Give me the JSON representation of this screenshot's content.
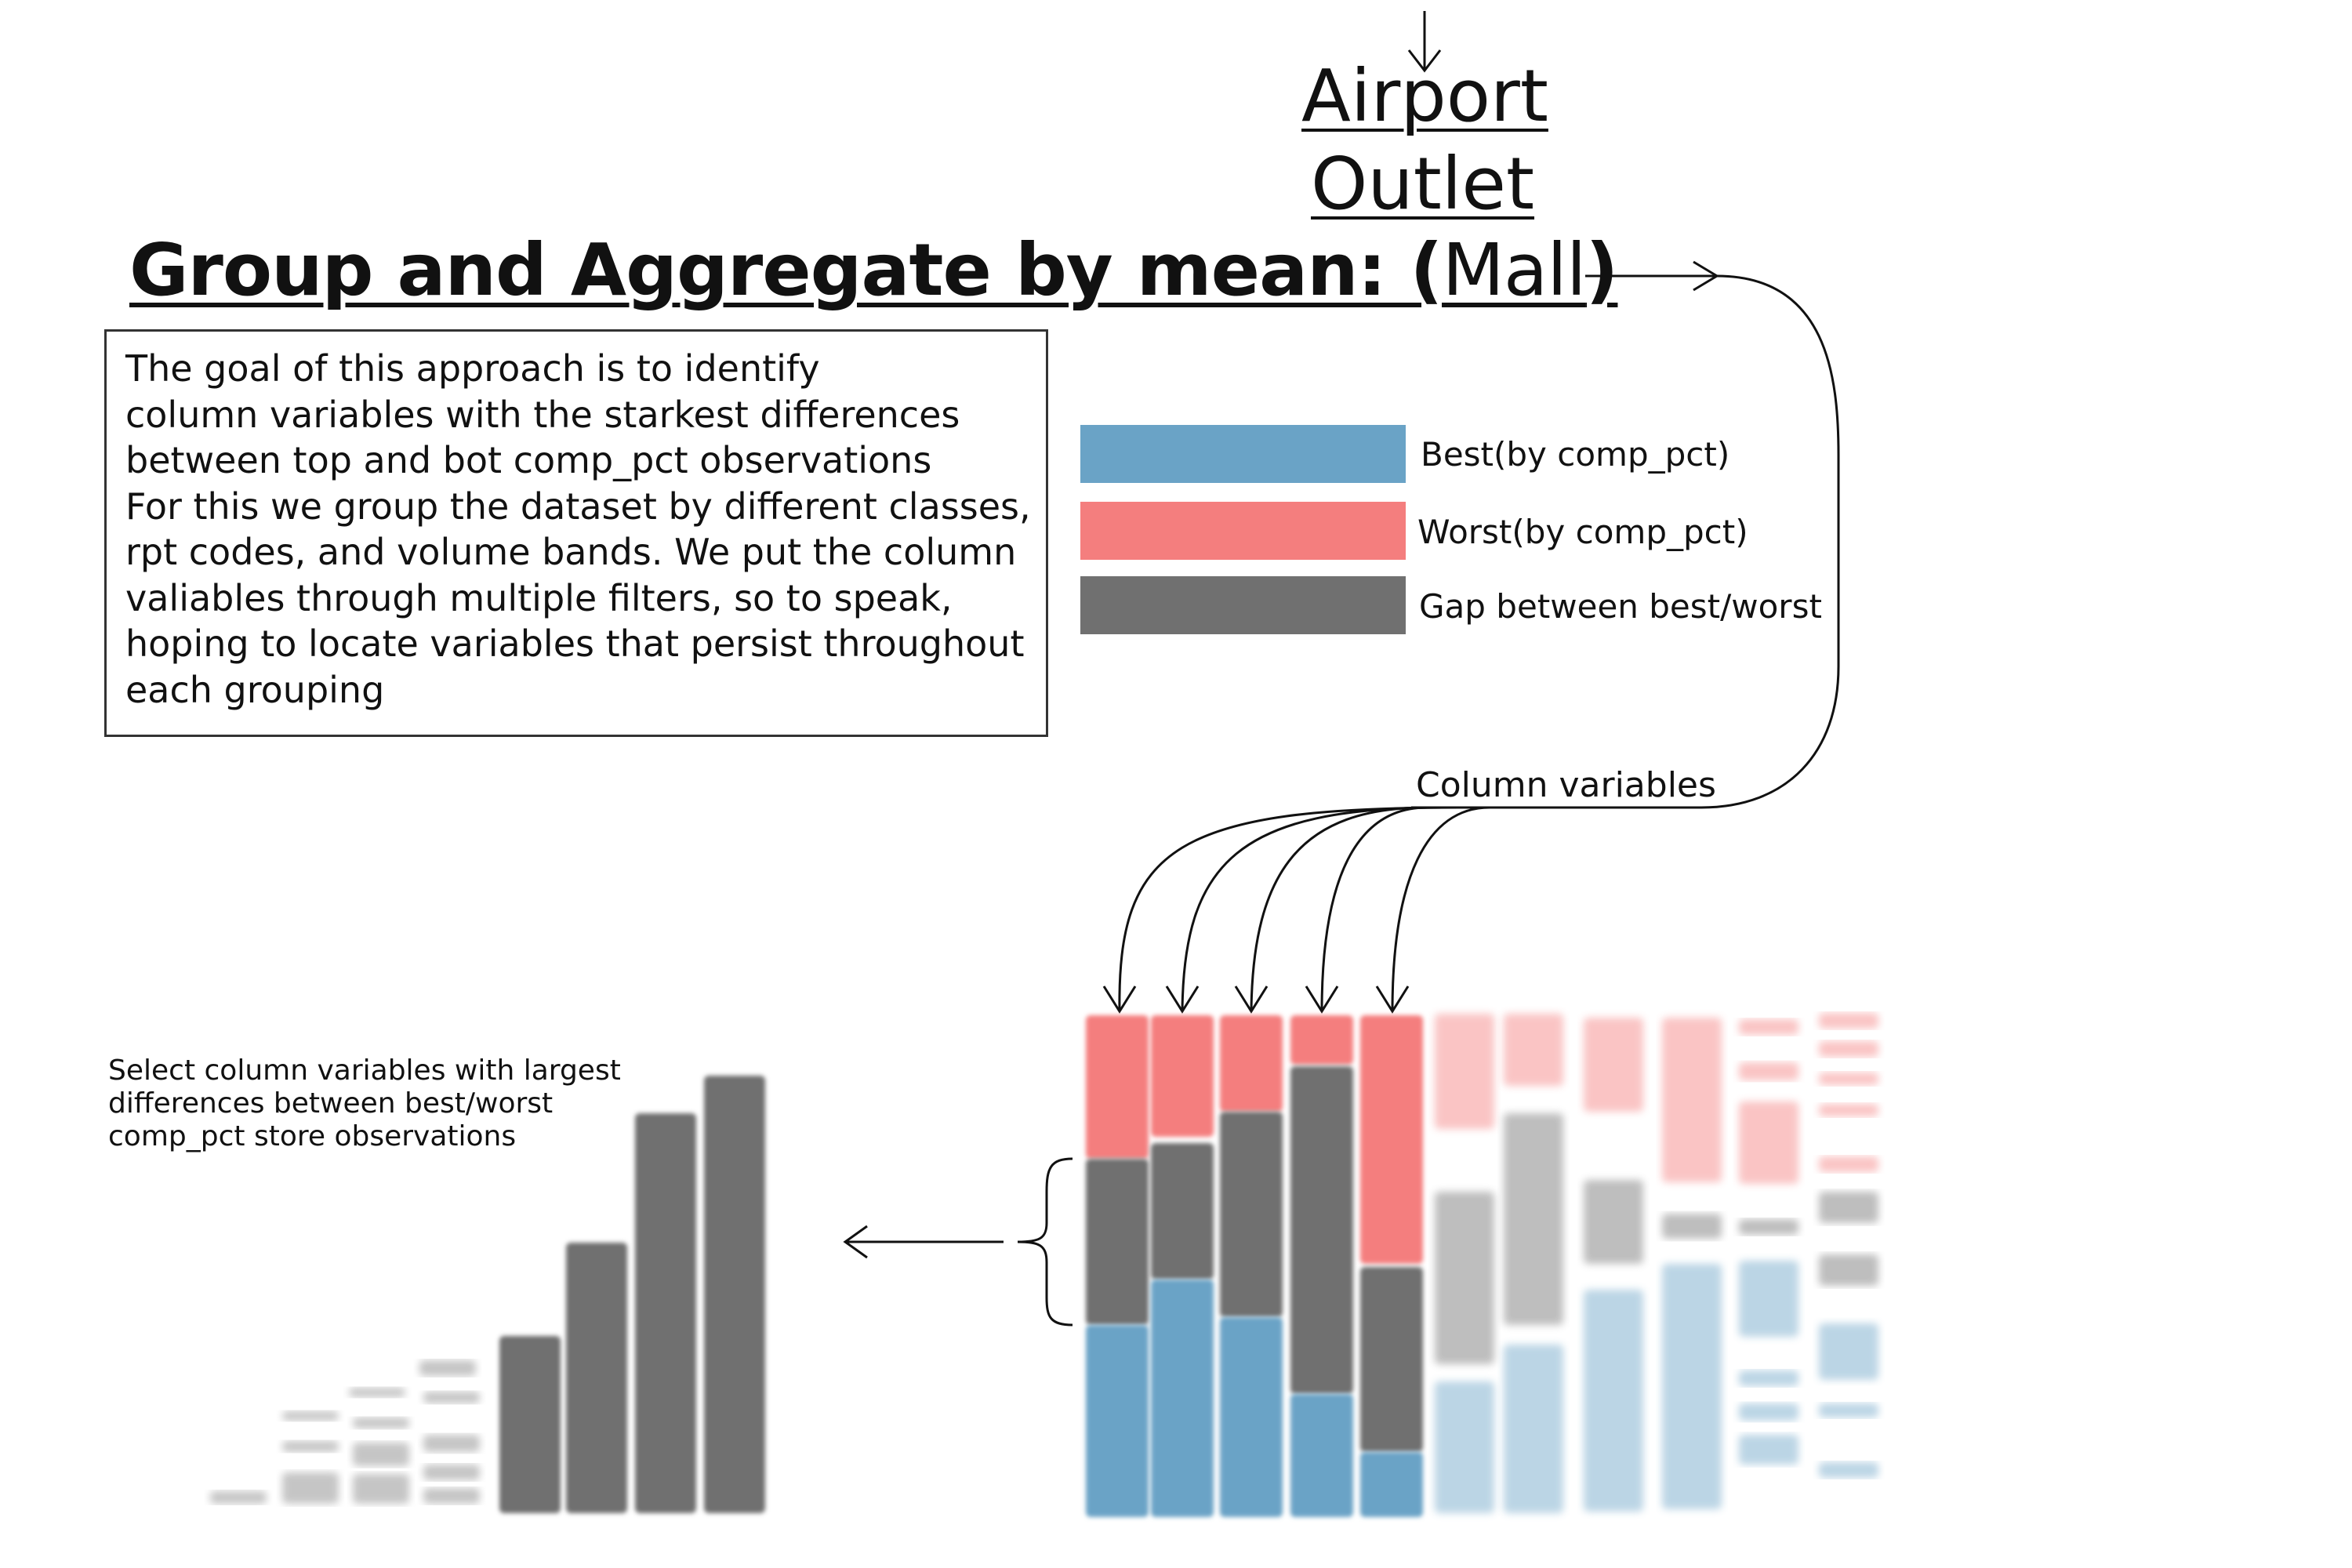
{
  "title": {
    "prefix": "Group and Aggregate by mean: (",
    "word": "Mall",
    "suffix": ")",
    "alternatives": [
      "Airport",
      "Outlet"
    ]
  },
  "description": [
    "The goal of this approach is to identify",
    "column variables with the starkest differences",
    "between top and bot comp_pct observations",
    "For this we group the dataset by different classes,",
    "rpt codes, and volume bands. We put the column",
    "valiables through multiple filters, so to speak,",
    "hoping to locate variables that persist throughout",
    "each grouping"
  ],
  "legend": {
    "best": "Best(by comp_pct)",
    "worst": "Worst(by comp_pct)",
    "gap": "Gap between best/worst"
  },
  "colors": {
    "best": "#6aa3c6",
    "worst": "#f47e7e",
    "gap": "#707070"
  },
  "column_variables_label": "Column variables",
  "select_note": [
    "Select column variables with largest",
    "differences between best/worst",
    "comp_pct store observations"
  ]
}
